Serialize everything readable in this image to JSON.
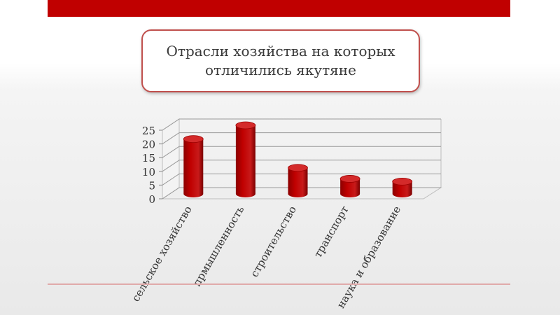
{
  "slide": {
    "title": "Отрасли хозяйства на которых отличились якутяне",
    "colors": {
      "top_bar": "#c00000",
      "bar": "#c00000",
      "title_border": "#c0504d"
    }
  },
  "chart_data": {
    "type": "bar",
    "categories": [
      "сельское хозяйство",
      "прмышленность",
      "строительство",
      "транспорт",
      "наука и образование"
    ],
    "values": [
      20,
      25,
      9.5,
      5.5,
      4.5
    ],
    "yticks": [
      0,
      5,
      10,
      15,
      20,
      25
    ],
    "ylim": [
      0,
      25
    ],
    "grid": true,
    "legend": "none"
  }
}
